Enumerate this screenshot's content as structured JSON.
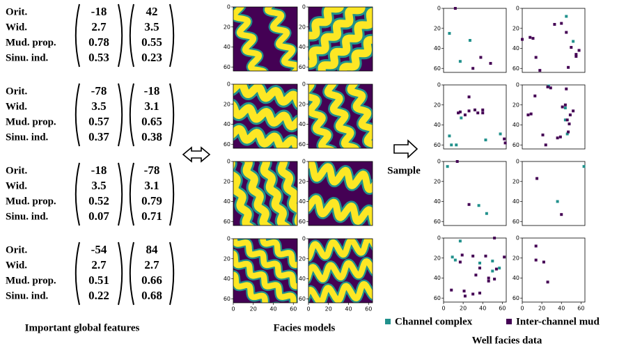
{
  "features": {
    "caption": "Important global features",
    "groups": [
      {
        "labels": [
          "Orit.",
          "Wid.",
          "Mud. prop.",
          "Sinu. ind."
        ],
        "vectors": [
          [
            -18,
            2.7,
            0.78,
            0.53
          ],
          [
            42,
            3.5,
            0.55,
            0.23
          ]
        ]
      },
      {
        "labels": [
          "Orit.",
          "Wid.",
          "Mud. prop.",
          "Sinu. ind."
        ],
        "vectors": [
          [
            -78,
            3.5,
            0.57,
            0.37
          ],
          [
            -18,
            3.1,
            0.65,
            0.38
          ]
        ]
      },
      {
        "labels": [
          "Orit.",
          "Wid.",
          "Mud. prop.",
          "Sinu. ind."
        ],
        "vectors": [
          [
            -18,
            3.5,
            0.52,
            0.07
          ],
          [
            -78,
            3.1,
            0.79,
            0.71
          ]
        ]
      },
      {
        "labels": [
          "Orit.",
          "Wid.",
          "Mud. prop.",
          "Sinu. ind."
        ],
        "vectors": [
          [
            -54,
            2.7,
            0.51,
            0.22
          ],
          [
            84,
            2.7,
            0.66,
            0.68
          ]
        ]
      }
    ]
  },
  "facies": {
    "caption": "Facies models",
    "lim": [
      0,
      64
    ],
    "ticks": [
      0,
      20,
      40,
      60
    ],
    "colors": {
      "mud": "#440154",
      "channel": "#fde725",
      "margin": "#21918c"
    }
  },
  "sample_label": "Sample",
  "wells": {
    "caption": "Well facies data",
    "lim": [
      0,
      64
    ],
    "ticks": [
      0,
      20,
      40,
      60
    ],
    "legend": [
      {
        "name": "Channel complex",
        "color": "#21918c"
      },
      {
        "name": "Inter-channel mud",
        "color": "#440154"
      }
    ],
    "plots": [
      [
        {
          "channel": [
            [
              6,
              25
            ],
            [
              27,
              32
            ],
            [
              17,
              53
            ]
          ],
          "mud": [
            [
              12,
              0
            ],
            [
              38,
              49
            ],
            [
              48,
              55
            ],
            [
              30,
              60
            ]
          ]
        },
        {
          "channel": [
            [
              45,
              8
            ],
            [
              52,
              33
            ]
          ],
          "mud": [
            [
              0,
              31
            ],
            [
              8,
              29
            ],
            [
              11,
              30
            ],
            [
              14,
              49
            ],
            [
              18,
              62
            ],
            [
              33,
              16
            ],
            [
              40,
              15
            ],
            [
              45,
              24
            ],
            [
              50,
              39
            ],
            [
              55,
              46
            ],
            [
              47,
              59
            ],
            [
              55,
              48
            ],
            [
              58,
              42
            ]
          ]
        }
      ],
      [
        {
          "channel": [
            [
              18,
              33
            ],
            [
              6,
              51
            ],
            [
              8,
              60
            ],
            [
              13,
              60
            ],
            [
              43,
              55
            ],
            [
              58,
              49
            ]
          ],
          "mud": [
            [
              26,
              12
            ],
            [
              15,
              28
            ],
            [
              17,
              27
            ],
            [
              22,
              30
            ],
            [
              26,
              26
            ],
            [
              32,
              25
            ],
            [
              35,
              28
            ],
            [
              40,
              25
            ],
            [
              40,
              28
            ],
            [
              62,
              54
            ],
            [
              63,
              58
            ]
          ]
        },
        {
          "channel": [
            [
              27,
              1
            ],
            [
              44,
              23
            ],
            [
              44,
              35
            ],
            [
              46,
              49
            ]
          ],
          "mud": [
            [
              26,
              2
            ],
            [
              29,
              3
            ],
            [
              45,
              4
            ],
            [
              13,
              11
            ],
            [
              9,
              29
            ],
            [
              6,
              30
            ],
            [
              41,
              22
            ],
            [
              44,
              20
            ],
            [
              46,
              35
            ],
            [
              48,
              39
            ],
            [
              49,
              30
            ],
            [
              52,
              26
            ],
            [
              47,
              47
            ],
            [
              21,
              50
            ],
            [
              24,
              60
            ],
            [
              36,
              53
            ],
            [
              39,
              52
            ]
          ]
        }
      ],
      [
        {
          "channel": [
            [
              4,
              5
            ],
            [
              36,
              44
            ],
            [
              44,
              52
            ]
          ],
          "mud": [
            [
              14,
              0
            ],
            [
              26,
              43
            ]
          ]
        },
        {
          "channel": [
            [
              63,
              5
            ],
            [
              36,
              40
            ]
          ],
          "mud": [
            [
              15,
              17
            ],
            [
              40,
              53
            ]
          ]
        }
      ],
      [
        {
          "channel": [
            [
              17,
              3
            ],
            [
              9,
              19
            ],
            [
              12,
              22
            ],
            [
              37,
              25
            ],
            [
              50,
              23
            ],
            [
              50,
              33
            ],
            [
              57,
              30
            ]
          ],
          "mud": [
            [
              8,
              52
            ],
            [
              19,
              17
            ],
            [
              17,
              24
            ],
            [
              21,
              53
            ],
            [
              22,
              58
            ],
            [
              30,
              18
            ],
            [
              33,
              37
            ],
            [
              37,
              30
            ],
            [
              43,
              18
            ],
            [
              46,
              40
            ],
            [
              46,
              43
            ],
            [
              52,
              41
            ],
            [
              54,
              31
            ],
            [
              62,
              19
            ],
            [
              30,
              56
            ],
            [
              37,
              55
            ],
            [
              52,
              0
            ]
          ]
        },
        {
          "channel": [],
          "mud": [
            [
              14,
              8
            ],
            [
              14,
              22
            ],
            [
              22,
              24
            ],
            [
              26,
              44
            ]
          ]
        }
      ]
    ]
  }
}
